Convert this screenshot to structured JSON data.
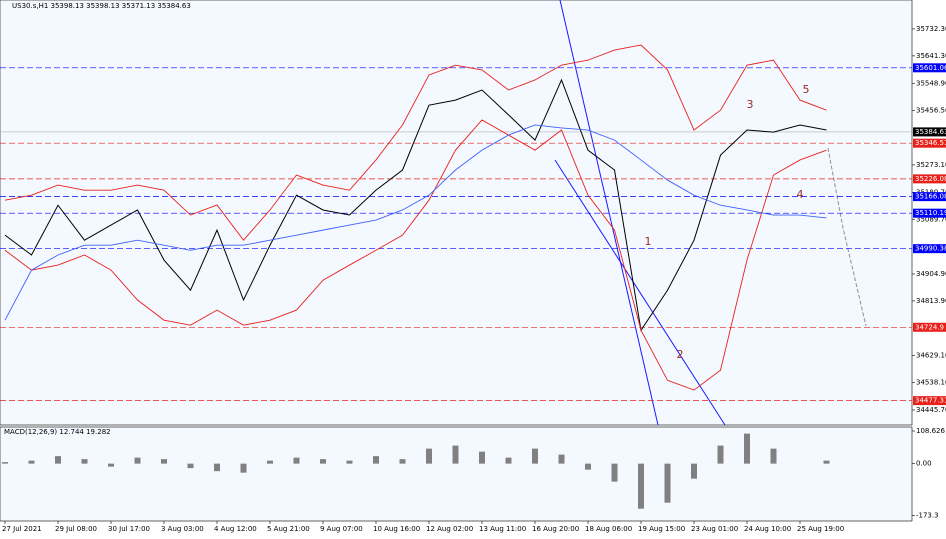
{
  "chart_data": [
    {
      "type": "line",
      "title": "US30.s,H1  35398.13 35398.13 35371.13 35384.63",
      "categories": [
        "27 Jul 2021",
        null,
        "29 Jul 08:00",
        null,
        "30 Jul 17:00",
        null,
        "3 Aug 03:00",
        null,
        "4 Aug 12:00",
        null,
        "5 Aug 21:00",
        null,
        "9 Aug 07:00",
        null,
        "10 Aug 16:00",
        null,
        "12 Aug 02:00",
        null,
        "13 Aug 11:00",
        null,
        "16 Aug 20:00",
        null,
        "18 Aug 06:00",
        null,
        "19 Aug 15:00",
        null,
        "23 Aug 01:00",
        null,
        "24 Aug 10:00",
        null,
        "25 Aug 19:00",
        null
      ],
      "series": [
        {
          "color": "#000000",
          "values": [
            35036,
            34969,
            35137,
            35019,
            35070,
            35121,
            34952,
            34850,
            35053,
            34817,
            35002,
            35171,
            35121,
            35104,
            35188,
            35256,
            35475,
            35492,
            35526,
            35442,
            35357,
            35560,
            35323,
            35256,
            34715,
            34850,
            35019,
            35306,
            35391,
            35384,
            35408,
            35391
          ]
        },
        {
          "color": "#e8201a",
          "values": [
            35154,
            35171,
            35205,
            35188,
            35188,
            35205,
            35188,
            35104,
            35138,
            35019,
            35121,
            35239,
            35205,
            35188,
            35290,
            35408,
            35577,
            35610,
            35594,
            35526,
            35560,
            35610,
            35627,
            35661,
            35678,
            35594,
            35391,
            35458,
            35610,
            35627,
            35492,
            35458
          ]
        },
        {
          "color": "#e8201a",
          "values": [
            34985,
            34918,
            34935,
            34969,
            34918,
            34817,
            34749,
            34732,
            34783,
            34732,
            34749,
            34783,
            34884,
            34935,
            34985,
            35036,
            35154,
            35323,
            35425,
            35374,
            35323,
            35391,
            35171,
            35053,
            34715,
            34546,
            34513,
            34580,
            34952,
            35239,
            35290,
            35323
          ]
        },
        {
          "color": "#4060ff",
          "values": [
            34749,
            34918,
            34969,
            35002,
            35002,
            35019,
            35002,
            34985,
            35002,
            35002,
            35019,
            35036,
            35053,
            35070,
            35087,
            35121,
            35171,
            35256,
            35323,
            35374,
            35408,
            35398,
            35391,
            35357,
            35290,
            35222,
            35171,
            35137,
            35121,
            35104,
            35104,
            35094
          ]
        }
      ],
      "ylim": [
        34395,
        35830
      ],
      "yticks": [
        {
          "value": 35732.3,
          "label": "35732.30"
        },
        {
          "value": 35641.3,
          "label": "35641.30"
        },
        {
          "value": 35548.9,
          "label": "35548.90"
        },
        {
          "value": 35456.5,
          "label": "35456.50"
        },
        {
          "value": 35273.1,
          "label": "35273.10"
        },
        {
          "value": 35180.7,
          "label": "35180.70"
        },
        {
          "value": 35089.7,
          "label": "35089.70"
        },
        {
          "value": 34904.9,
          "label": "34904.90"
        },
        {
          "value": 34813.9,
          "label": "34813.90"
        },
        {
          "value": 34629.1,
          "label": "34629.10"
        },
        {
          "value": 34538.1,
          "label": "34538.10"
        },
        {
          "value": 34445.7,
          "label": "34445.70"
        }
      ],
      "levels": [
        {
          "value": 35601.06,
          "color": "#0000ff"
        },
        {
          "value": 35346.51,
          "color": "#e8201a"
        },
        {
          "value": 35226.08,
          "color": "#e8201a"
        },
        {
          "value": 35166.08,
          "color": "#0000ff"
        },
        {
          "value": 35110.19,
          "color": "#0000ff"
        },
        {
          "value": 34990.38,
          "color": "#0000ff"
        },
        {
          "value": 34724.9,
          "color": "#e8201a"
        },
        {
          "value": 34477.31,
          "color": "#e8201a"
        }
      ],
      "current": {
        "value": 35384.63,
        "color": "#000000"
      },
      "wave_labels": [
        "1",
        "2",
        "3",
        "4",
        "5"
      ]
    },
    {
      "type": "bar",
      "title": "MACD(12,26,9) 12.744 19.282",
      "color": "#808080",
      "values": [
        5,
        10,
        25,
        15,
        -10,
        20,
        15,
        -15,
        -25,
        -30,
        10,
        20,
        15,
        10,
        25,
        15,
        50,
        60,
        40,
        20,
        50,
        30,
        -20,
        -60,
        -150,
        -130,
        -50,
        60,
        100,
        50,
        0,
        10
      ],
      "ylim": [
        -191,
        122
      ],
      "yticks": [
        108.626,
        {
          "value": 0,
          "label": "0.00"
        },
        -173.3
      ]
    }
  ]
}
